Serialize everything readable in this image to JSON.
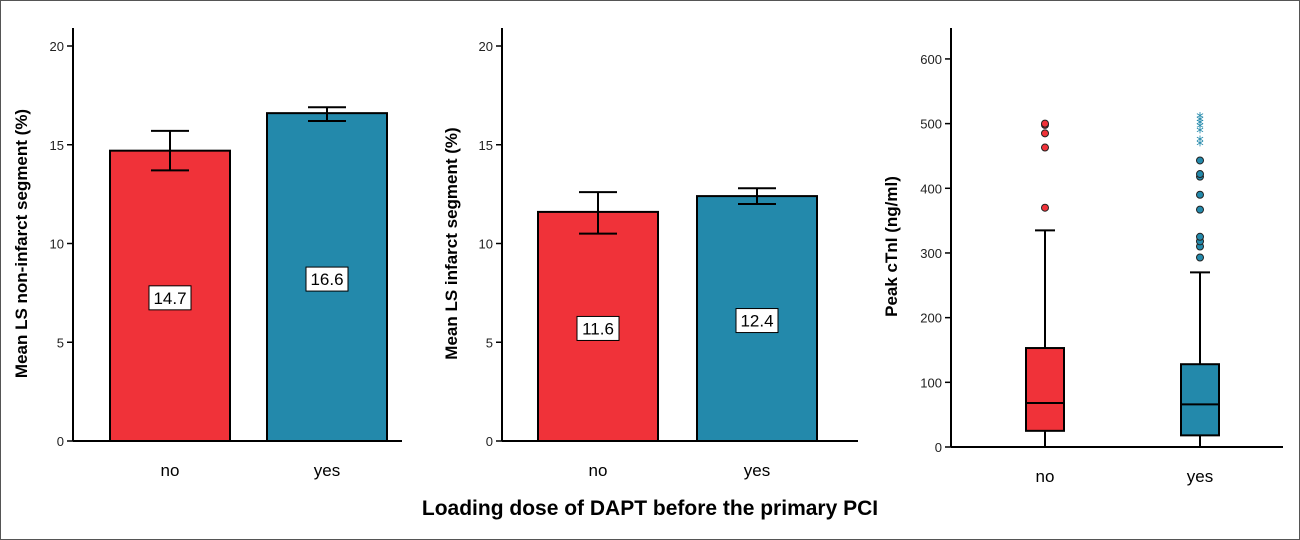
{
  "colors": {
    "no": "#f03239",
    "yes": "#2389ab"
  },
  "shared_xlabel": "Loading dose of DAPT before the primary PCI",
  "chart_data": [
    {
      "type": "bar",
      "ylabel": "Mean LS non-infarct segment (%)",
      "categories": [
        "no",
        "yes"
      ],
      "values": [
        14.7,
        16.6
      ],
      "value_labels": [
        "14.7",
        "16.6"
      ],
      "error_low": [
        13.7,
        16.2
      ],
      "error_high": [
        15.7,
        16.9
      ],
      "ylim": [
        0,
        20
      ],
      "yticks": [
        "0",
        "5",
        "10",
        "15",
        "20"
      ]
    },
    {
      "type": "bar",
      "ylabel": "Mean LS infarct segment (%)",
      "categories": [
        "no",
        "yes"
      ],
      "values": [
        11.6,
        12.4
      ],
      "value_labels": [
        "11.6",
        "12.4"
      ],
      "error_low": [
        10.5,
        12.0
      ],
      "error_high": [
        12.6,
        12.8
      ],
      "ylim": [
        0,
        20
      ],
      "yticks": [
        "0",
        "5",
        "10",
        "15",
        "20"
      ]
    },
    {
      "type": "box",
      "ylabel": "Peak cTnI (ng/ml)",
      "categories": [
        "no",
        "yes"
      ],
      "ylim": [
        0,
        620
      ],
      "yticks": [
        "0",
        "100",
        "200",
        "300",
        "400",
        "500",
        "600"
      ],
      "boxes": [
        {
          "category": "no",
          "whisker_low": 0,
          "q1": 25,
          "median": 68,
          "q3": 153,
          "whisker_high": 335,
          "outliers": [
            370,
            463,
            485,
            498,
            500
          ],
          "extremes": []
        },
        {
          "category": "yes",
          "whisker_low": 0,
          "q1": 18,
          "median": 66,
          "q3": 128,
          "whisker_high": 270,
          "outliers": [
            293,
            310,
            318,
            325,
            367,
            390,
            418,
            422,
            443
          ],
          "extremes": [
            468,
            474,
            488,
            495,
            500,
            505,
            510
          ]
        }
      ]
    }
  ]
}
